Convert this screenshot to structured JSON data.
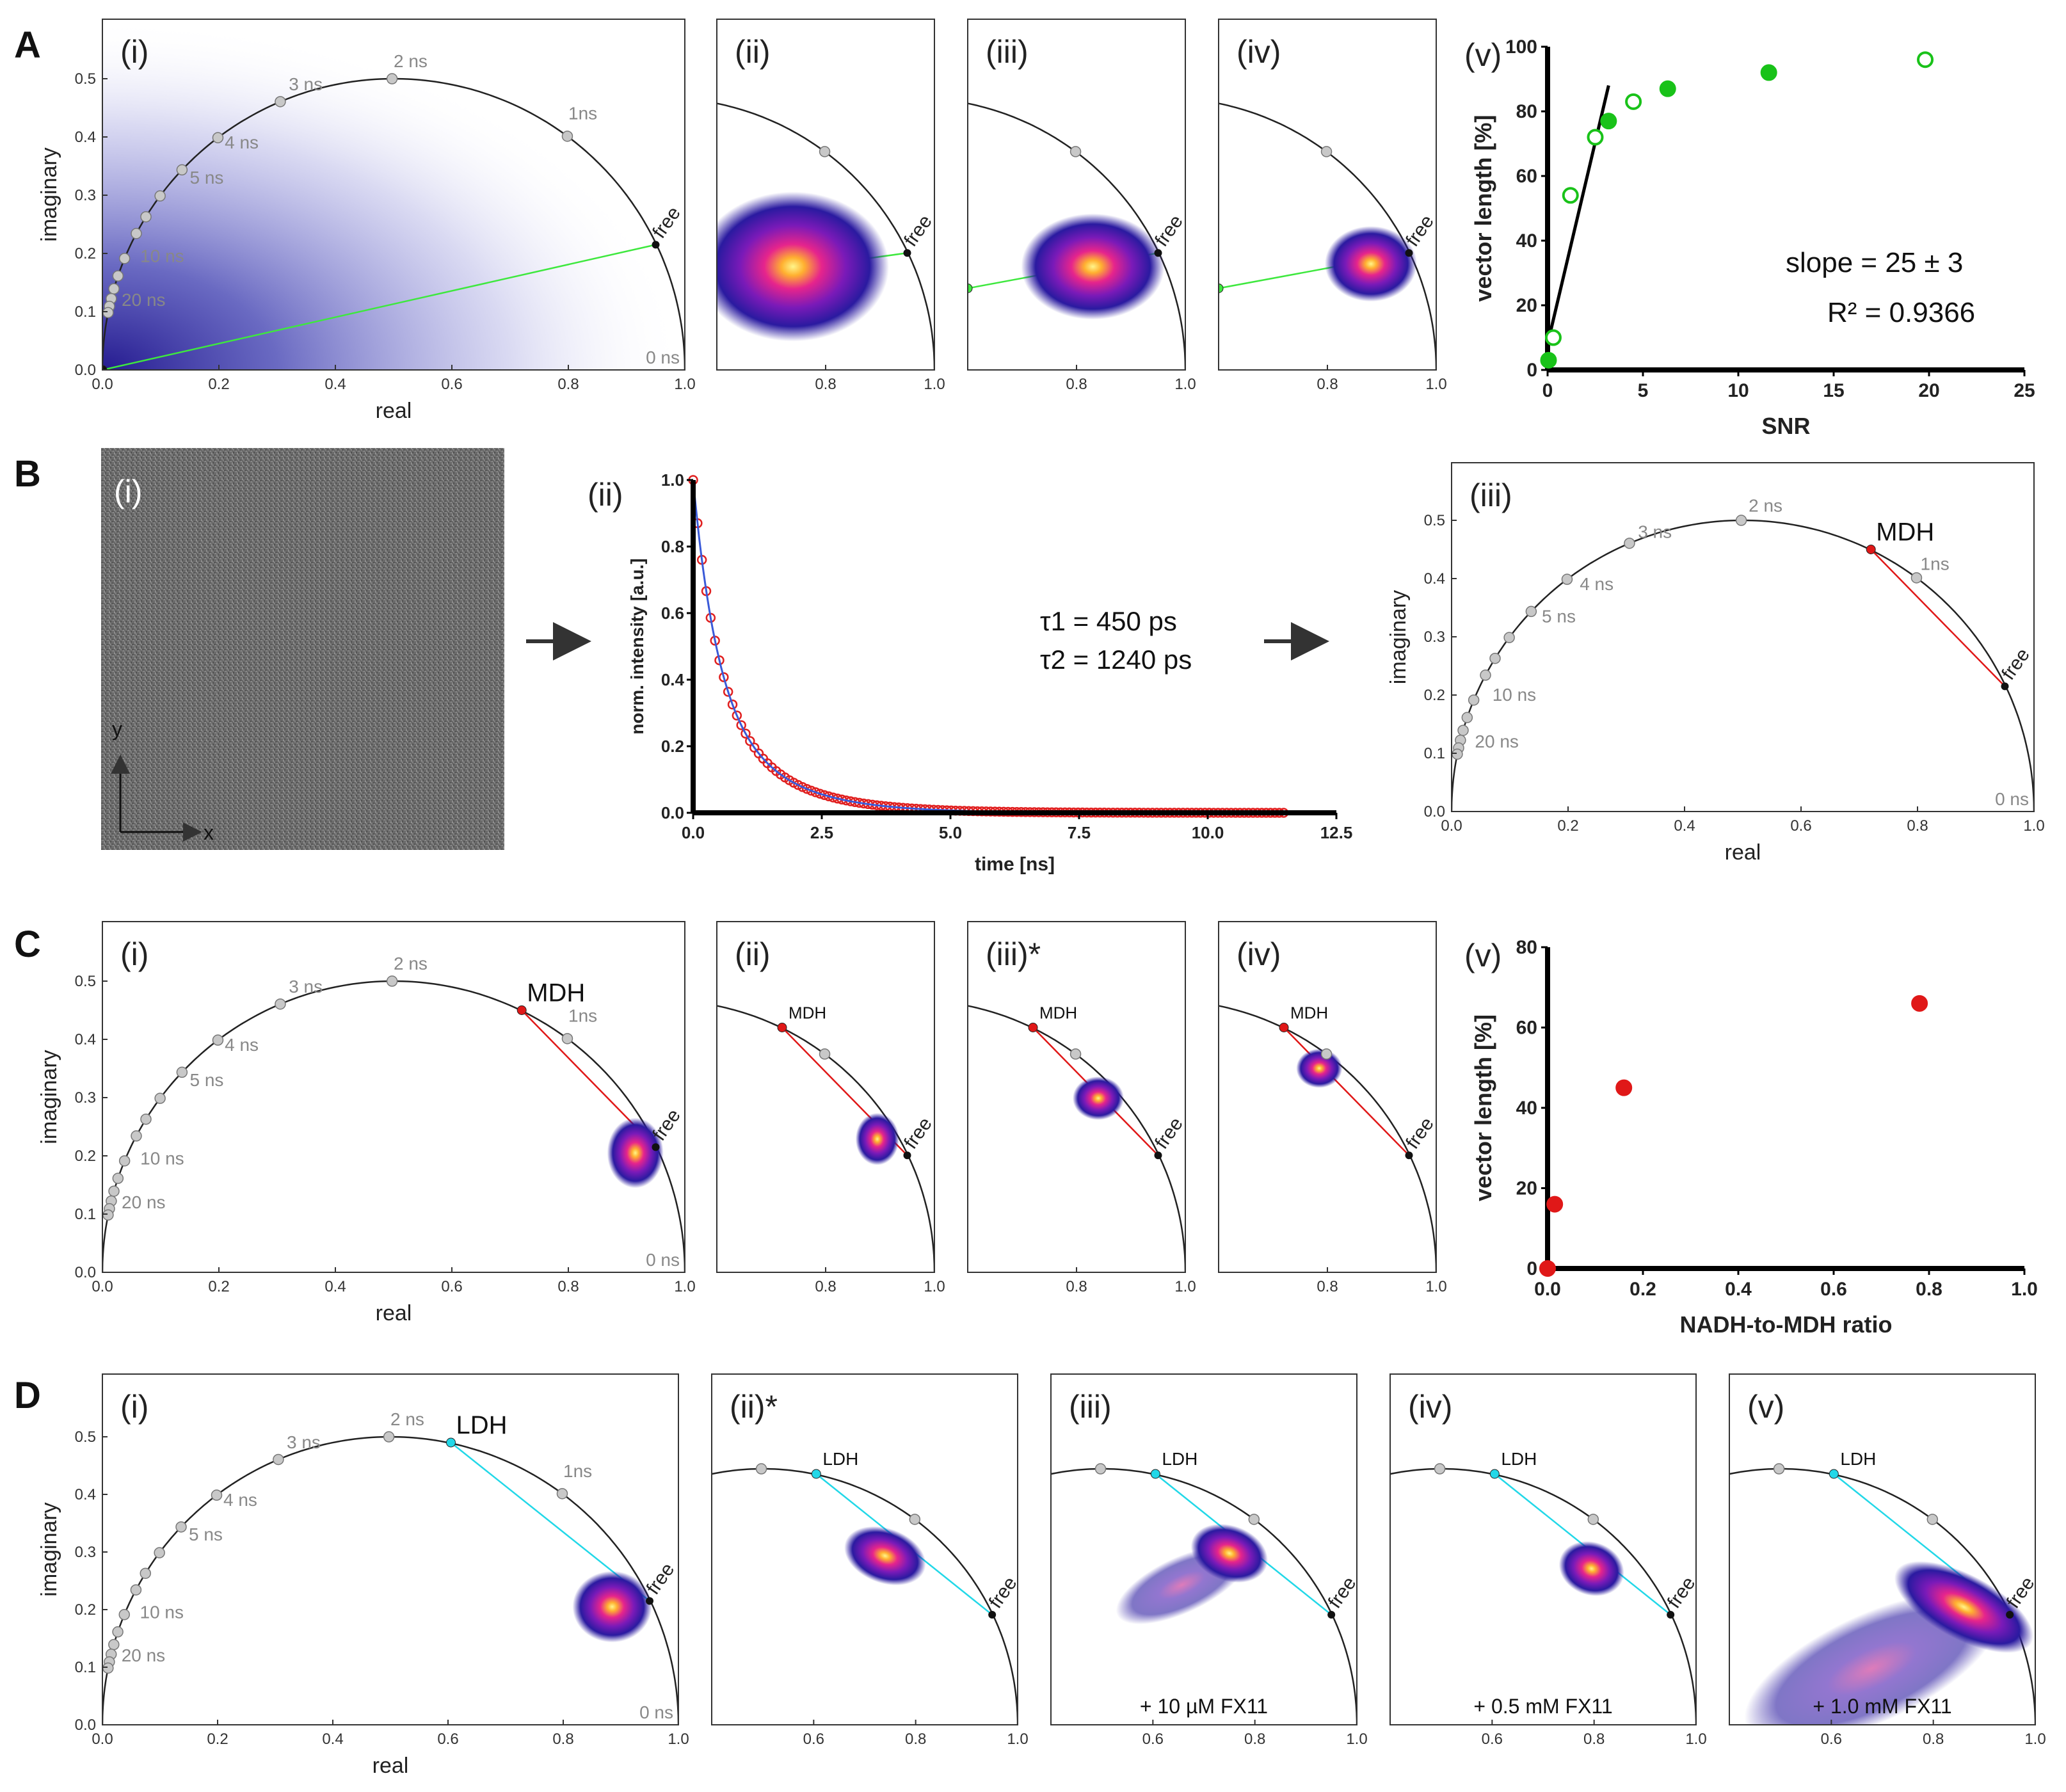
{
  "figure": {
    "panels": {
      "A": "A",
      "B": "B",
      "C": "C",
      "D": "D"
    },
    "subpanels": {
      "i": "(i)",
      "ii": "(ii)",
      "iii": "(iii)",
      "iii_star": "(iii)*",
      "ii_star": "(ii)*",
      "iv": "(iv)",
      "v": "(v)"
    },
    "axes": {
      "real": "real",
      "imaginary": "imaginary",
      "snr": "SNR",
      "vector_length": "vector length [%]",
      "nadh_ratio": "NADH-to-MDH ratio",
      "time": "time [ns]",
      "norm_intensity": "norm. intensity [a.u.]"
    },
    "phasor_labels": {
      "free": "free",
      "zero": "0 ns",
      "mdh": "MDH",
      "ldh": "LDH",
      "t1": "1ns",
      "t2": "2 ns",
      "t3": "3 ns",
      "t4": "4 ns",
      "t5": "5 ns",
      "t10": "10 ns",
      "t20": "20 ns"
    },
    "ticks": {
      "x_full": [
        "0.0",
        "0.2",
        "0.4",
        "0.6",
        "0.8",
        "1.0"
      ],
      "x_zoom": [
        "0.8",
        "1.0"
      ],
      "x_zoom_d": [
        "0.6",
        "0.8",
        "1.0"
      ],
      "y_phasor": [
        "0.0",
        "0.1",
        "0.2",
        "0.3",
        "0.4",
        "0.5"
      ],
      "snr_x": [
        "0",
        "5",
        "10",
        "15",
        "20",
        "25"
      ],
      "vec_y_A": [
        "0",
        "20",
        "40",
        "60",
        "80",
        "100"
      ],
      "ratio_x": [
        "0.0",
        "0.2",
        "0.4",
        "0.6",
        "0.8",
        "1.0"
      ],
      "vec_y_C": [
        "0",
        "20",
        "40",
        "60",
        "80"
      ],
      "time_x": [
        "0.0",
        "2.5",
        "5.0",
        "7.5",
        "10.0",
        "12.5"
      ],
      "int_y": [
        "0.0",
        "0.2",
        "0.4",
        "0.6",
        "0.8",
        "1.0"
      ]
    },
    "annotations": {
      "slope": "slope = 25 ± 3",
      "r2": "R² = 0.9366",
      "tau1": "τ1 =   450 ps",
      "tau2": "τ2 = 1240 ps",
      "axis_x": "x",
      "axis_y": "y",
      "fx11_a": "+ 10 µM FX11",
      "fx11_b": "+ 0.5 mM FX11",
      "fx11_c": "+ 1.0 mM FX11"
    },
    "colors": {
      "green": "#19c219",
      "red": "#e01818",
      "cyan": "#22d8e8",
      "cloud": "#2a1aa0",
      "line_green": "#3ee83e"
    }
  },
  "chart_data": [
    {
      "id": "A-v",
      "type": "scatter",
      "title": "",
      "xlabel": "SNR",
      "ylabel": "vector length [%]",
      "xlim": [
        0,
        25
      ],
      "ylim": [
        0,
        100
      ],
      "series": [
        {
          "name": "filled",
          "points": [
            [
              0.05,
              3
            ],
            [
              3.2,
              77
            ],
            [
              6.3,
              87
            ],
            [
              11.6,
              92
            ]
          ]
        },
        {
          "name": "open",
          "points": [
            [
              0.3,
              10
            ],
            [
              1.2,
              54
            ],
            [
              2.5,
              72
            ],
            [
              4.5,
              83
            ],
            [
              19.8,
              96
            ]
          ]
        }
      ],
      "fit": {
        "slope": 25,
        "slope_err": 3,
        "r2": 0.9366,
        "x_range": [
          0,
          3.2
        ]
      }
    },
    {
      "id": "B-ii",
      "type": "line",
      "xlabel": "time [ns]",
      "ylabel": "norm. intensity [a.u.]",
      "xlim": [
        0,
        12.5
      ],
      "ylim": [
        0,
        1
      ],
      "decay": {
        "a1": 0.6,
        "tau1_ns": 0.45,
        "a2": 0.4,
        "tau2_ns": 1.24,
        "t_max": 11.5
      }
    },
    {
      "id": "C-v",
      "type": "scatter",
      "xlabel": "NADH-to-MDH ratio",
      "ylabel": "vector length [%]",
      "xlim": [
        0,
        1
      ],
      "ylim": [
        0,
        80
      ],
      "series": [
        {
          "name": "data",
          "points": [
            [
              0.0,
              0
            ],
            [
              0.015,
              16
            ],
            [
              0.16,
              45
            ],
            [
              0.78,
              66
            ]
          ]
        }
      ]
    },
    {
      "id": "phasor",
      "type": "scatter",
      "xlabel": "real",
      "ylabel": "imaginary",
      "reference_points": {
        "free": [
          0.95,
          0.215
        ],
        "MDH": [
          0.72,
          0.45
        ],
        "LDH": [
          0.605,
          0.49
        ]
      },
      "clouds": {
        "A-ii": [
          0.74,
          0.19
        ],
        "A-iii": [
          0.83,
          0.19
        ],
        "A-iv": [
          0.88,
          0.195
        ],
        "C-i": [
          0.915,
          0.205
        ],
        "C-ii": [
          0.895,
          0.245
        ],
        "C-iii": [
          0.84,
          0.32
        ],
        "C-iv": [
          0.785,
          0.375
        ],
        "D-i": [
          0.885,
          0.205
        ],
        "D-ii": [
          0.74,
          0.33
        ],
        "D-iii": [
          0.75,
          0.335
        ],
        "D-iv": [
          0.795,
          0.305
        ],
        "D-v": [
          0.86,
          0.23
        ]
      }
    }
  ]
}
